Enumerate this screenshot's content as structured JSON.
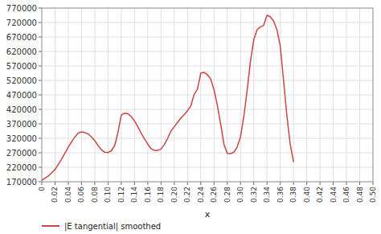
{
  "chart_data": {
    "type": "line",
    "xlabel": "x",
    "x": [
      0,
      0.01,
      0.02,
      0.03,
      0.04,
      0.05,
      0.055,
      0.06,
      0.065,
      0.07,
      0.075,
      0.08,
      0.085,
      0.09,
      0.095,
      0.1,
      0.105,
      0.11,
      0.115,
      0.12,
      0.125,
      0.13,
      0.135,
      0.14,
      0.145,
      0.15,
      0.155,
      0.16,
      0.165,
      0.17,
      0.175,
      0.18,
      0.185,
      0.19,
      0.195,
      0.2,
      0.205,
      0.21,
      0.215,
      0.22,
      0.225,
      0.23,
      0.235,
      0.24,
      0.245,
      0.25,
      0.255,
      0.26,
      0.265,
      0.27,
      0.275,
      0.28,
      0.285,
      0.29,
      0.295,
      0.3,
      0.305,
      0.31,
      0.315,
      0.32,
      0.325,
      0.33,
      0.335,
      0.34,
      0.345,
      0.35,
      0.355,
      0.36,
      0.365,
      0.37,
      0.375,
      0.38
    ],
    "series": [
      {
        "name": "|E tangential| smoothed",
        "color": "#cc4444",
        "values": [
          175000,
          190000,
          212000,
          248000,
          290000,
          325000,
          338000,
          342000,
          340000,
          335000,
          325000,
          312000,
          295000,
          280000,
          272000,
          271000,
          277000,
          295000,
          340000,
          400000,
          407000,
          405000,
          395000,
          380000,
          360000,
          338000,
          318000,
          300000,
          284000,
          278000,
          278000,
          283000,
          298000,
          320000,
          345000,
          360000,
          375000,
          390000,
          402000,
          415000,
          432000,
          472000,
          490000,
          545000,
          548000,
          540000,
          525000,
          488000,
          435000,
          370000,
          300000,
          268000,
          267000,
          272000,
          290000,
          325000,
          395000,
          485000,
          585000,
          660000,
          695000,
          705000,
          710000,
          745000,
          740000,
          725000,
          695000,
          640000,
          520000,
          400000,
          300000,
          240000
        ]
      }
    ],
    "xlim": [
      0,
      0.5
    ],
    "ylim": [
      170000,
      770000
    ],
    "xticks": [
      0,
      0.02,
      0.04,
      0.06,
      0.08,
      {
        "value": 0.1,
        "label": "0.10"
      },
      0.12,
      0.14,
      0.16,
      0.18,
      {
        "value": 0.2,
        "label": "0.20"
      },
      0.22,
      0.24,
      0.26,
      0.28,
      {
        "value": 0.3,
        "label": "0.30"
      },
      0.32,
      0.34,
      0.36,
      0.38,
      {
        "value": 0.4,
        "label": "0.40"
      },
      0.42,
      0.44,
      0.46,
      0.48,
      {
        "value": 0.5,
        "label": "0.50"
      }
    ],
    "yticks": [
      170000,
      220000,
      270000,
      320000,
      370000,
      420000,
      470000,
      520000,
      570000,
      620000,
      670000,
      720000,
      770000
    ],
    "grid": true,
    "legend": "bottom"
  }
}
